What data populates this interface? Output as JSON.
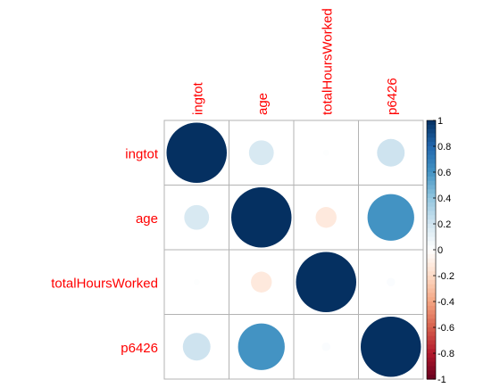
{
  "chart_data": {
    "type": "heatmap",
    "subtype": "correlation-circles",
    "variables": [
      "ingtot",
      "age",
      "totalHoursWorked",
      "p6426"
    ],
    "matrix": [
      [
        1.0,
        0.17,
        0.01,
        0.21
      ],
      [
        0.17,
        1.0,
        -0.12,
        0.6
      ],
      [
        0.01,
        -0.12,
        1.0,
        0.02
      ],
      [
        0.21,
        0.6,
        0.02,
        1.0
      ]
    ],
    "color_scale": {
      "min": -1,
      "max": 1,
      "ticks": [
        "-1",
        "-0.8",
        "-0.6",
        "-0.4",
        "-0.2",
        "0",
        "0.2",
        "0.4",
        "0.6",
        "0.8",
        "1"
      ],
      "stops": [
        "#67001F",
        "#B2182B",
        "#D6604D",
        "#F4A582",
        "#FDDBC7",
        "#FFFFFF",
        "#D1E5F0",
        "#92C5DE",
        "#4393C3",
        "#2166AC",
        "#053061"
      ]
    },
    "label_color": "#FF0000",
    "grid": true,
    "legend_position": "right",
    "title": "",
    "xlabel": "",
    "ylabel": ""
  }
}
